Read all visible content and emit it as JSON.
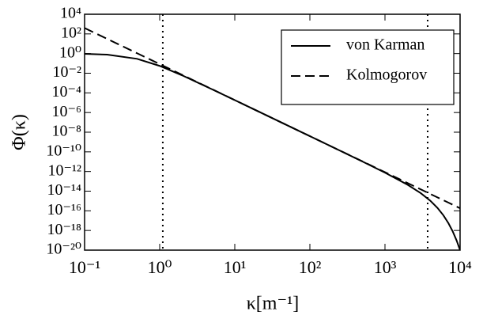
{
  "chart_data": {
    "type": "line",
    "xlabel": "κ[m⁻¹]",
    "ylabel": "Φ(κ)",
    "xscale": "log",
    "yscale": "log",
    "xlim": [
      0.1,
      10000
    ],
    "ylim": [
      1e-20,
      10000
    ],
    "xticks": [
      {
        "value": 0.1,
        "label": "10⁻¹"
      },
      {
        "value": 1,
        "label": "10⁰"
      },
      {
        "value": 10,
        "label": "10¹"
      },
      {
        "value": 100,
        "label": "10²"
      },
      {
        "value": 1000,
        "label": "10³"
      },
      {
        "value": 10000,
        "label": "10⁴"
      }
    ],
    "yticks": [
      {
        "value": 1e-20,
        "label": "10⁻²⁰"
      },
      {
        "value": 1e-18,
        "label": "10⁻¹⁸"
      },
      {
        "value": 1e-16,
        "label": "10⁻¹⁶"
      },
      {
        "value": 1e-14,
        "label": "10⁻¹⁴"
      },
      {
        "value": 1e-12,
        "label": "10⁻¹²"
      },
      {
        "value": 1e-10,
        "label": "10⁻¹⁰"
      },
      {
        "value": 1e-08,
        "label": "10⁻⁸"
      },
      {
        "value": 1e-06,
        "label": "10⁻⁶"
      },
      {
        "value": 0.0001,
        "label": "10⁻⁴"
      },
      {
        "value": 0.01,
        "label": "10⁻²"
      },
      {
        "value": 1,
        "label": "10⁰"
      },
      {
        "value": 100,
        "label": "10²"
      },
      {
        "value": 10000,
        "label": "10⁴"
      }
    ],
    "x": [
      0.1,
      0.2,
      0.5,
      1,
      2,
      5,
      10,
      20,
      50,
      100,
      200,
      500,
      1000,
      2000,
      3000,
      4000,
      5000,
      6000,
      7000,
      8000,
      9000,
      10000
    ],
    "series": [
      {
        "name": "von Karman",
        "color": "#000000",
        "linestyle": "solid",
        "values": [
          0.938,
          0.774,
          0.292,
          0.0557,
          0.00597,
          0.000229,
          1.82e-05,
          1.44e-06,
          5.01e-08,
          3.94e-09,
          3.1e-10,
          1.05e-11,
          7.69e-13,
          4.51e-14,
          6.25e-15,
          1.09e-15,
          1.99e-16,
          3.47e-17,
          5.48e-18,
          7.69e-19,
          9.4e-20,
          9.89e-21
        ]
      },
      {
        "name": "Kolmogorov",
        "color": "#000000",
        "linestyle": "dashed",
        "values": [
          395,
          31.1,
          1.08,
          0.0851,
          0.0067,
          0.000233,
          1.83e-05,
          1.44e-06,
          5.01e-08,
          3.94e-09,
          3.1e-10,
          1.08e-11,
          8.49e-13,
          6.68e-14,
          1.51e-14,
          5.26e-15,
          2.32e-15,
          1.19e-15,
          6.76e-16,
          4.15e-16,
          2.69e-16,
          1.83e-16
        ]
      }
    ],
    "vlines": [
      1.1,
      3700
    ],
    "legend": "upper right",
    "grid": false
  }
}
